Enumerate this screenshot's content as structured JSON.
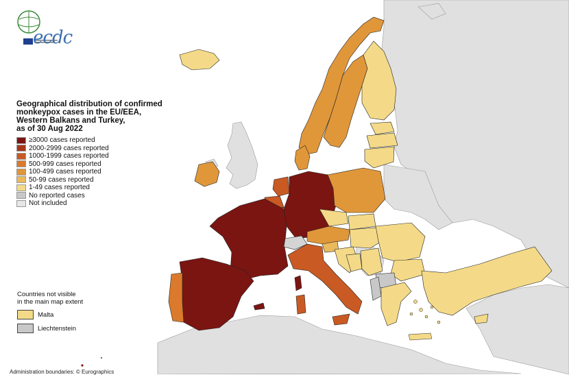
{
  "legend": {
    "title_lines": [
      "Geographical distribution of confirmed",
      "monkeypox cases in the EU/EEA,",
      "Western Balkans and Turkey,",
      "as of 30 Aug 2022"
    ],
    "items": [
      {
        "label": "≥3000 cases reported",
        "color": "#7b1512"
      },
      {
        "label": "2000-2999 cases reported",
        "color": "#a8361a"
      },
      {
        "label": "1000-1999 cases reported",
        "color": "#c95a24"
      },
      {
        "label": "500-999 cases reported",
        "color": "#db7a2c"
      },
      {
        "label": "100-499 cases reported",
        "color": "#e0973a"
      },
      {
        "label": "50-99 cases reported",
        "color": "#ebba5c"
      },
      {
        "label": "1-49 cases reported",
        "color": "#f4da88"
      },
      {
        "label": "No reported cases",
        "color": "#c8c8c8"
      },
      {
        "label": "Not included",
        "color": "#e6e6e6"
      }
    ]
  },
  "not_visible": {
    "title_lines": [
      "Countries not visible",
      "in the main map extent"
    ],
    "items": [
      {
        "label": "Malta",
        "color": "#f4da88"
      },
      {
        "label": "Liechtenstein",
        "color": "#c8c8c8"
      }
    ]
  },
  "logo": {
    "text": "ecdc"
  },
  "credit": "Administration boundaries: © Eurographics",
  "colors": {
    "not_included": "#e0e0e0",
    "sea": "#ffffff",
    "border": "#222222"
  }
}
